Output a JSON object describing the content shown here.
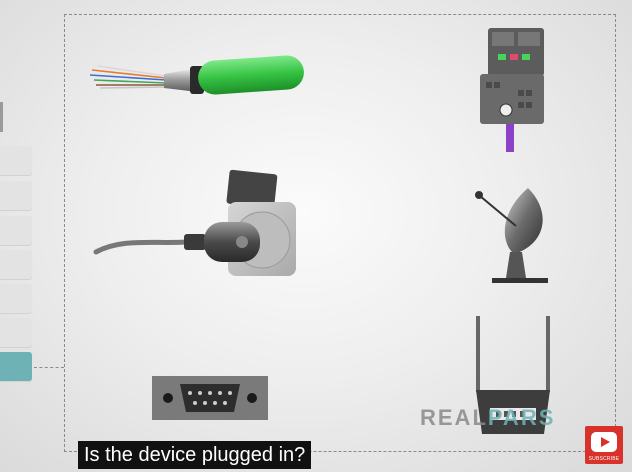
{
  "caption": {
    "text": "Is the device plugged in?"
  },
  "logo": {
    "text_main": "REAL",
    "text_accent": "PARS"
  },
  "subscribe_button": {
    "label": "SUBSCRIBE"
  },
  "sidebar": {
    "tab_count": 7,
    "active_index": 6
  },
  "devices": [
    {
      "name": "ethernet-cable"
    },
    {
      "name": "profibus-connector"
    },
    {
      "name": "power-plug-socket"
    },
    {
      "name": "satellite-dish"
    },
    {
      "name": "wifi-router"
    },
    {
      "name": "db9-serial-port"
    }
  ],
  "colors": {
    "accent": "#6fb2b6",
    "cable_green": "#3ecc4a",
    "subscribe_red": "#d8332b"
  }
}
